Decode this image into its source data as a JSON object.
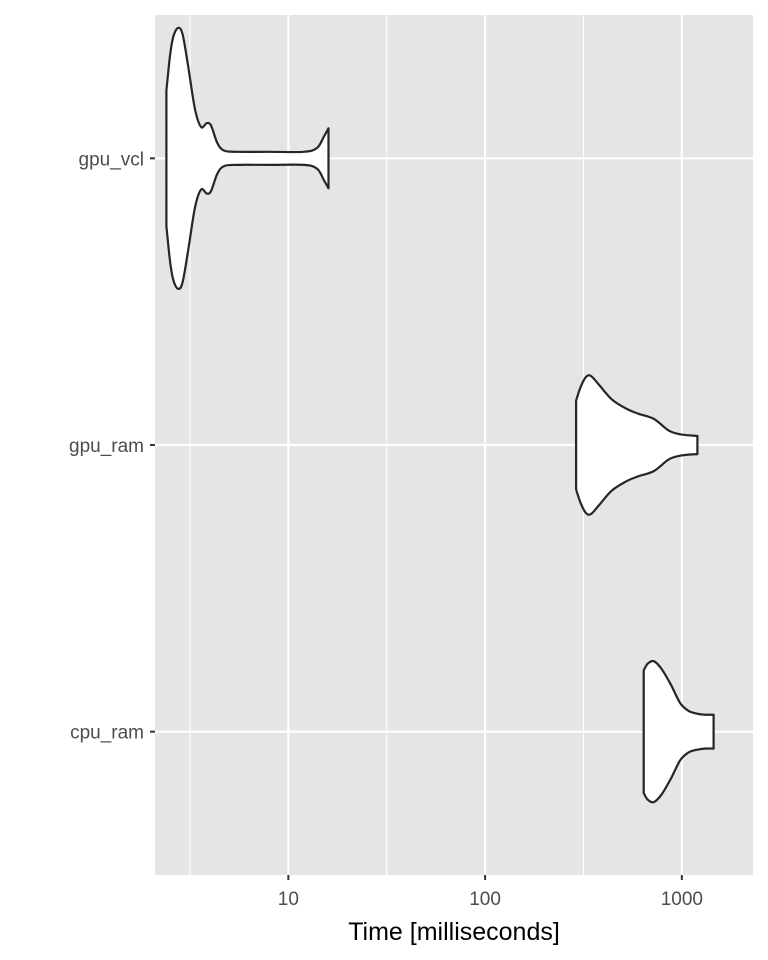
{
  "chart_data": {
    "type": "violin",
    "title": "",
    "xlabel": "Time [milliseconds]",
    "ylabel": "",
    "x_scale": "log10",
    "xlim": [
      2.1,
      2300
    ],
    "x_ticks": [
      {
        "value": 10,
        "label": "10"
      },
      {
        "value": 100,
        "label": "100"
      },
      {
        "value": 1000,
        "label": "1000"
      }
    ],
    "categories": [
      "gpu_vcl",
      "gpu_ram",
      "cpu_ram"
    ],
    "grid": true,
    "legend": "none",
    "colors": {
      "panel": "#e5e5e5",
      "grid": "#ffffff",
      "violin_fill": "#ffffff",
      "violin_stroke": "#262626",
      "tick": "#333333"
    },
    "series": [
      {
        "name": "gpu_vcl",
        "min": 2.4,
        "max": 16,
        "density": [
          [
            2.4,
            0.52
          ],
          [
            2.5,
            0.78
          ],
          [
            2.6,
            0.93
          ],
          [
            2.75,
            1.0
          ],
          [
            2.9,
            0.95
          ],
          [
            3.1,
            0.7
          ],
          [
            3.35,
            0.38
          ],
          [
            3.6,
            0.24
          ],
          [
            3.85,
            0.27
          ],
          [
            4.05,
            0.25
          ],
          [
            4.35,
            0.12
          ],
          [
            4.7,
            0.06
          ],
          [
            5.5,
            0.05
          ],
          [
            8,
            0.05
          ],
          [
            12,
            0.05
          ],
          [
            14,
            0.08
          ],
          [
            15.2,
            0.17
          ],
          [
            16,
            0.23
          ]
        ]
      },
      {
        "name": "gpu_ram",
        "min": 290,
        "max": 1200,
        "density": [
          [
            290,
            0.34
          ],
          [
            305,
            0.44
          ],
          [
            325,
            0.52
          ],
          [
            345,
            0.53
          ],
          [
            380,
            0.46
          ],
          [
            440,
            0.35
          ],
          [
            520,
            0.28
          ],
          [
            600,
            0.24
          ],
          [
            720,
            0.2
          ],
          [
            860,
            0.11
          ],
          [
            1000,
            0.08
          ],
          [
            1200,
            0.07
          ]
        ]
      },
      {
        "name": "cpu_ram",
        "min": 640,
        "max": 1450,
        "density": [
          [
            640,
            0.47
          ],
          [
            670,
            0.52
          ],
          [
            720,
            0.54
          ],
          [
            790,
            0.48
          ],
          [
            880,
            0.36
          ],
          [
            980,
            0.22
          ],
          [
            1080,
            0.16
          ],
          [
            1180,
            0.14
          ],
          [
            1300,
            0.13
          ],
          [
            1450,
            0.13
          ]
        ]
      }
    ]
  }
}
